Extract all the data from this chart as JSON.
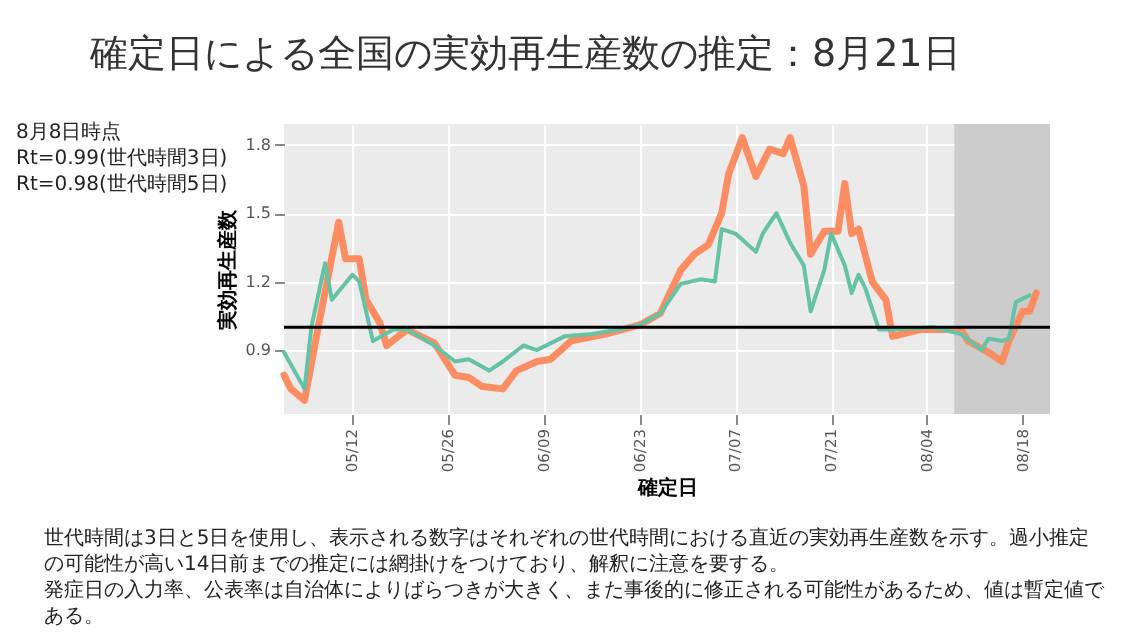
{
  "chart_data": {
    "type": "line",
    "title": "確定日による全国の実効再生産数の推定：8月21日",
    "xlabel": "確定日",
    "ylabel": "実効再生産数",
    "annotations": [
      "8月8日時点",
      "Rt=0.99(世代時間3日)",
      "Rt=0.98(世代時間5日)",
      "世代時間は3日と5日を使用し、表示される数字はそれぞれの世代時間における直近の実効再生産数を示す。過小推定の可能性が高い14日前までの推定には網掛けをつけており、解釈に注意を要する。",
      "発症日の入力率、公表率は自治体によりばらつきが大きく、また事後的に修正される可能性があるため、値は暫定値である。"
    ],
    "xlim": [
      "--05-02",
      "--08-22"
    ],
    "xticks": [
      {
        "value": "--05-12",
        "label": "05/12"
      },
      {
        "value": "--05-26",
        "label": "05/26"
      },
      {
        "value": "--06-09",
        "label": "06/09"
      },
      {
        "value": "--06-23",
        "label": "06/23"
      },
      {
        "value": "--07-07",
        "label": "07/07"
      },
      {
        "value": "--07-21",
        "label": "07/21"
      },
      {
        "value": "--08-04",
        "label": "08/04"
      },
      {
        "value": "--08-18",
        "label": "08/18"
      }
    ],
    "ylim": [
      0.62,
      1.89
    ],
    "yticks": [
      0.9,
      1.2,
      1.5,
      1.8
    ],
    "grid": true,
    "ref_lines": [
      {
        "axis": "y",
        "value": 1,
        "color": "#000000"
      }
    ],
    "bands": [
      {
        "axis": "x",
        "from": "--08-08",
        "to": "--08-22",
        "color": "#cccccc"
      }
    ],
    "series": [
      {
        "color": "#fc8d62",
        "x": [
          "--05-02",
          "--05-03",
          "--05-05",
          "--05-07",
          "--05-10",
          "--05-11",
          "--05-13",
          "--05-14",
          "--05-16",
          "--05-17",
          "--05-20",
          "--05-24",
          "--05-27",
          "--05-29",
          "--05-31",
          "--06-03",
          "--06-05",
          "--06-08",
          "--06-10",
          "--06-13",
          "--06-18",
          "--06-23",
          "--06-26",
          "--06-29",
          "--07-01",
          "--07-03",
          "--07-05",
          "--07-06",
          "--07-08",
          "--07-10",
          "--07-12",
          "--07-14",
          "--07-15",
          "--07-17",
          "--07-18",
          "--07-20",
          "--07-22",
          "--07-23",
          "--07-24",
          "--07-25",
          "--07-27",
          "--07-29",
          "--07-30",
          "--08-03",
          "--08-09",
          "--08-10",
          "--08-13",
          "--08-15",
          "--08-16",
          "--08-18",
          "--08-19",
          "--08-20"
        ],
        "values": [
          0.79,
          0.73,
          0.68,
          1.0,
          1.46,
          1.3,
          1.3,
          1.12,
          1.02,
          0.92,
          0.99,
          0.93,
          0.79,
          0.78,
          0.74,
          0.73,
          0.81,
          0.85,
          0.86,
          0.94,
          0.97,
          1.01,
          1.06,
          1.25,
          1.32,
          1.36,
          1.5,
          1.67,
          1.83,
          1.66,
          1.78,
          1.76,
          1.83,
          1.62,
          1.32,
          1.42,
          1.42,
          1.63,
          1.41,
          1.43,
          1.2,
          1.12,
          0.96,
          0.99,
          0.99,
          0.94,
          0.89,
          0.85,
          0.94,
          1.07,
          1.07,
          1.15
        ]
      },
      {
        "color": "#66c2a5",
        "x": [
          "--05-02",
          "--05-05",
          "--05-06",
          "--05-08",
          "--05-09",
          "--05-12",
          "--05-13",
          "--05-15",
          "--05-18",
          "--05-20",
          "--05-24",
          "--05-27",
          "--05-29",
          "--06-01",
          "--06-03",
          "--06-06",
          "--06-08",
          "--06-12",
          "--06-16",
          "--06-20",
          "--06-23",
          "--06-26",
          "--06-29",
          "--07-02",
          "--07-04",
          "--07-05",
          "--07-07",
          "--07-10",
          "--07-11",
          "--07-13",
          "--07-15",
          "--07-17",
          "--07-18",
          "--07-20",
          "--07-21",
          "--07-23",
          "--07-24",
          "--07-25",
          "--07-26",
          "--07-28",
          "--07-30",
          "--08-05",
          "--08-09",
          "--08-12",
          "--08-13",
          "--08-15",
          "--08-16",
          "--08-17",
          "--08-19"
        ],
        "values": [
          0.89,
          0.73,
          1.0,
          1.28,
          1.12,
          1.23,
          1.2,
          0.94,
          0.99,
          0.99,
          0.92,
          0.85,
          0.86,
          0.81,
          0.85,
          0.92,
          0.9,
          0.96,
          0.97,
          0.99,
          1.01,
          1.06,
          1.19,
          1.21,
          1.2,
          1.43,
          1.41,
          1.33,
          1.41,
          1.5,
          1.37,
          1.27,
          1.07,
          1.25,
          1.41,
          1.27,
          1.15,
          1.23,
          1.17,
          0.99,
          0.99,
          1.0,
          0.97,
          0.9,
          0.95,
          0.94,
          0.95,
          1.11,
          1.14
        ]
      }
    ]
  }
}
